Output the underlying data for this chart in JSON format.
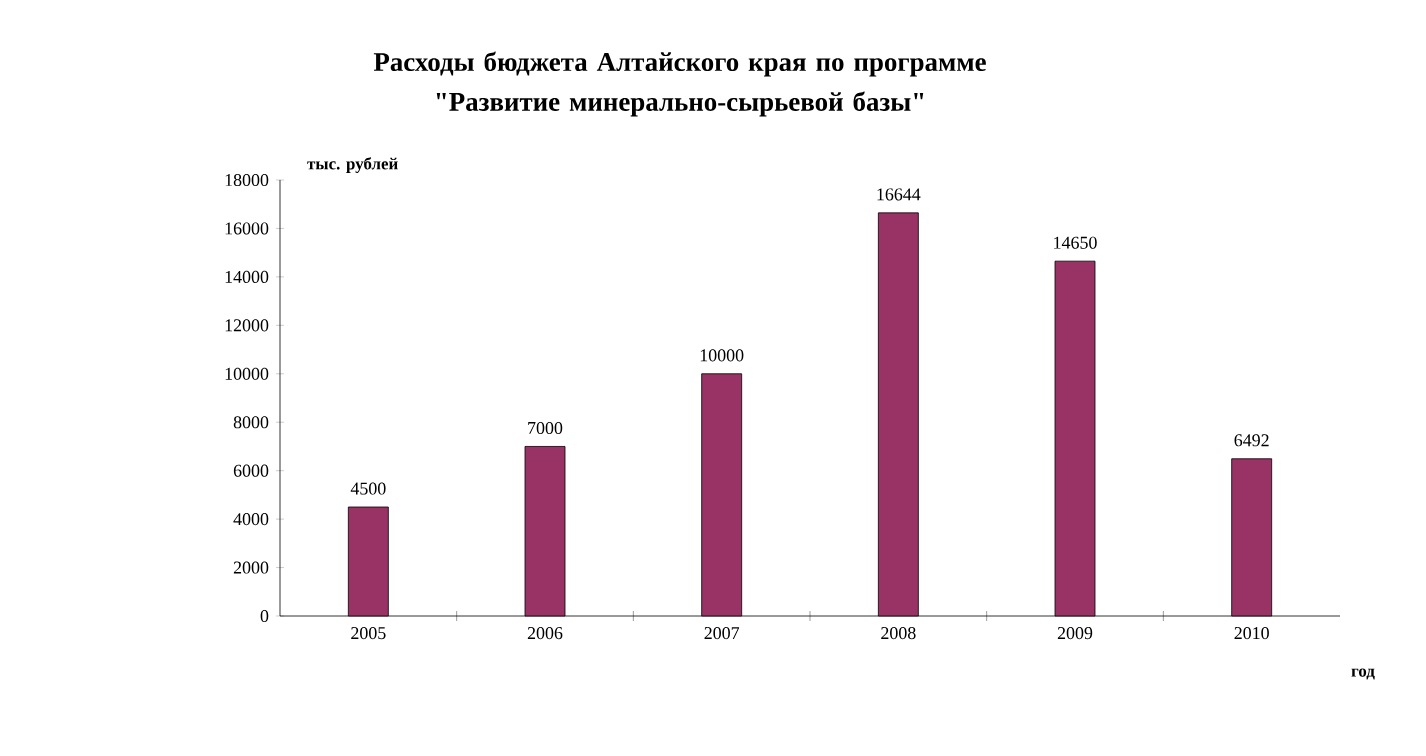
{
  "chart_data": {
    "type": "bar",
    "title": "Расходы бюджета Алтайского края по программе \"Развитие минерально-сырьевой базы\"",
    "ylabel": "тыс. рублей",
    "xlabel": "год",
    "categories": [
      "2005",
      "2006",
      "2007",
      "2008",
      "2009",
      "2010"
    ],
    "values": [
      4500,
      7000,
      10000,
      16644,
      14650,
      6492
    ],
    "color": "#993366",
    "data_labels": true,
    "ylim": [
      0,
      18000
    ],
    "yticks": [
      0,
      2000,
      4000,
      6000,
      8000,
      10000,
      12000,
      14000,
      16000,
      18000
    ],
    "grid": false
  }
}
